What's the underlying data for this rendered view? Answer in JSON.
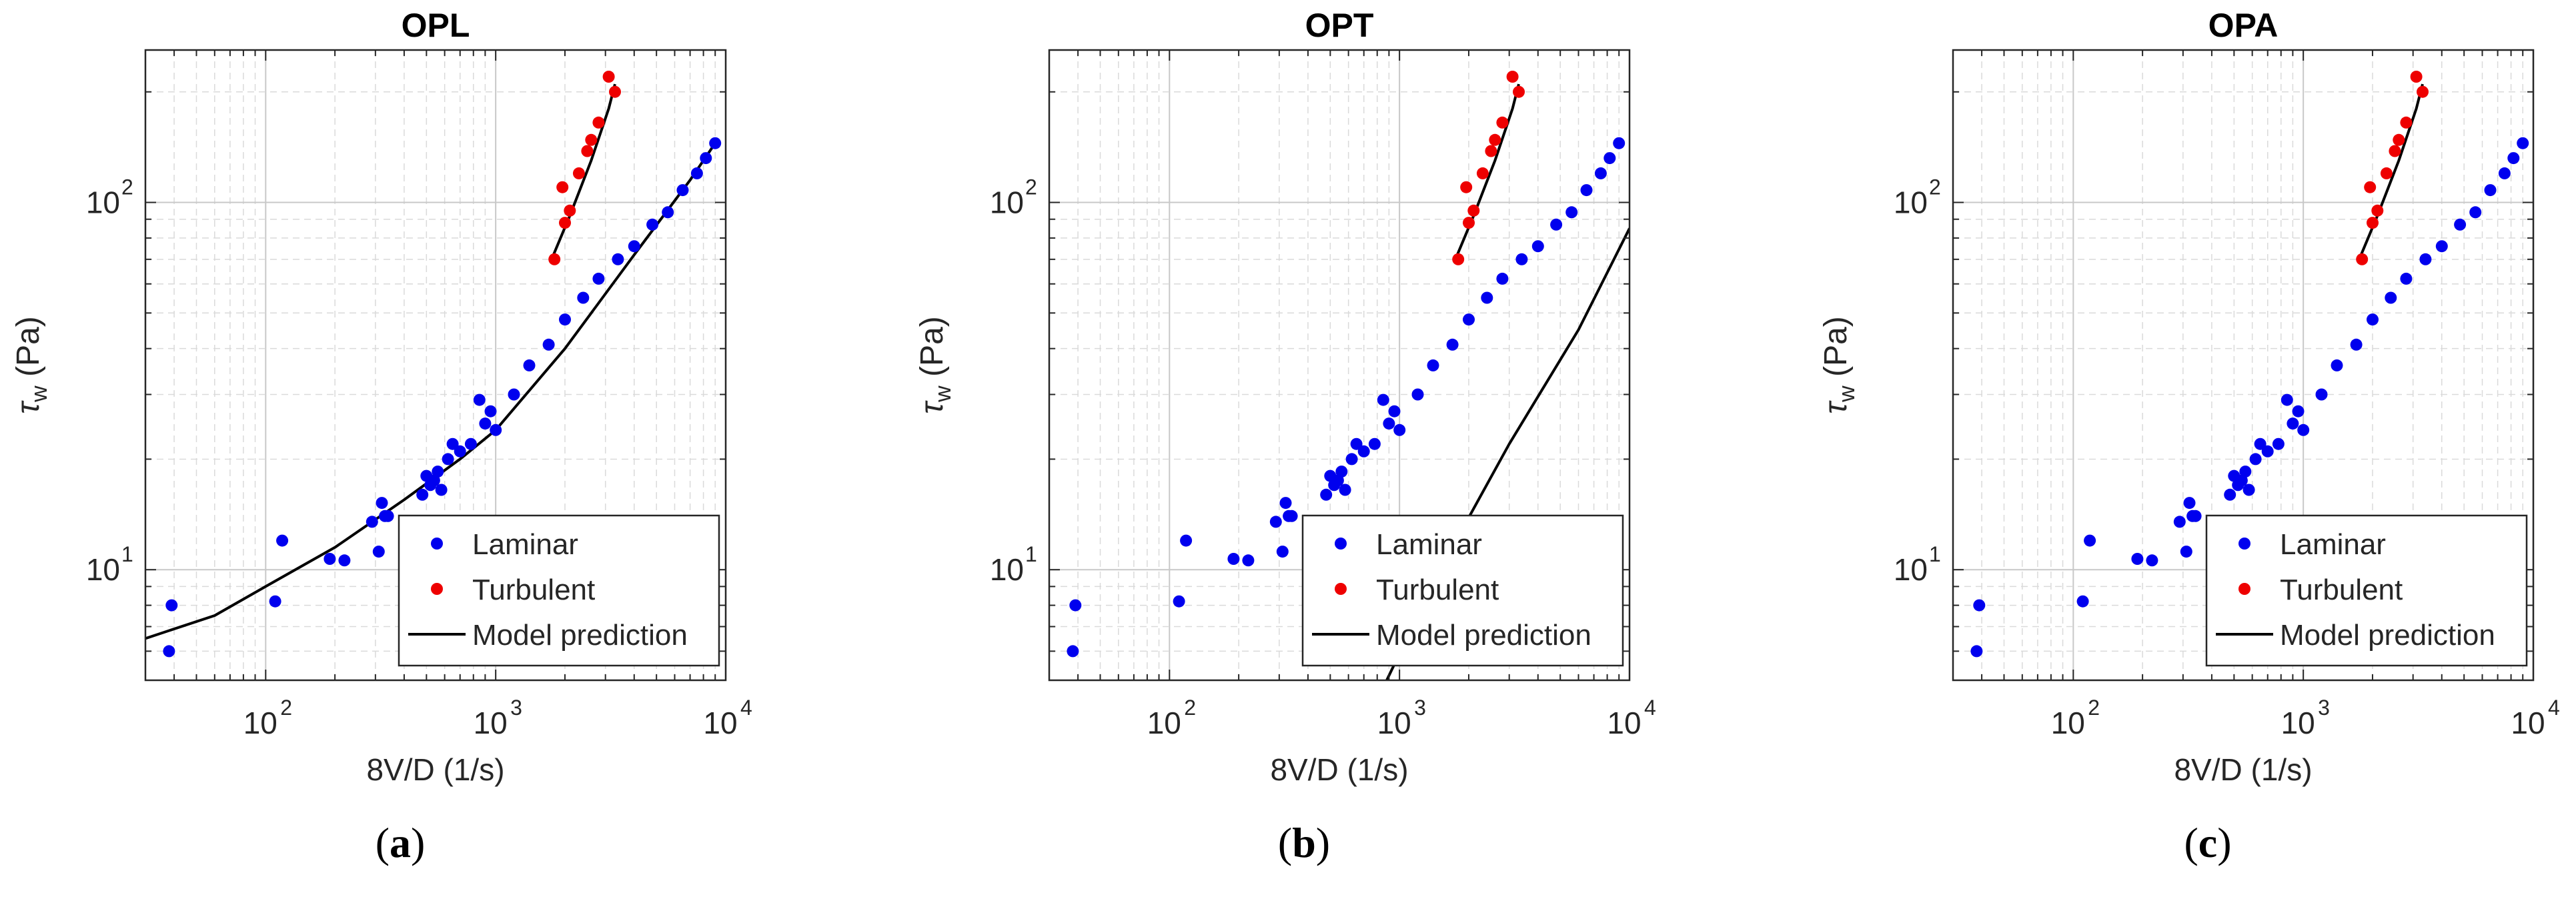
{
  "chart_data": [
    {
      "type": "scatter",
      "panel_label": "a",
      "title": "OPL",
      "xlabel": "8V/D (1/s)",
      "ylabel_symbol": "τ",
      "ylabel_subscript": "w",
      "ylabel_unit": "(Pa)",
      "xscale": "log",
      "yscale": "log",
      "xlim": [
        30,
        10000
      ],
      "ylim": [
        5,
        260
      ],
      "xticks": [
        {
          "value": 100,
          "label": "10",
          "exp": "2"
        },
        {
          "value": 1000,
          "label": "10",
          "exp": "3"
        },
        {
          "value": 10000,
          "label": "10",
          "exp": "4"
        }
      ],
      "yticks": [
        {
          "value": 10,
          "label": "10",
          "exp": "1"
        },
        {
          "value": 100,
          "label": "10",
          "exp": "2"
        }
      ],
      "grid": true,
      "legend_position": "bottom-right",
      "series": [
        {
          "name": "Laminar",
          "kind": "markers",
          "color": "#0000ee",
          "points": [
            [
              38,
              6
            ],
            [
              39,
              8
            ],
            [
              110,
              8.2
            ],
            [
              118,
              12
            ],
            [
              190,
              10.7
            ],
            [
              220,
              10.6
            ],
            [
              290,
              13.5
            ],
            [
              310,
              11.2
            ],
            [
              320,
              15.2
            ],
            [
              330,
              14
            ],
            [
              340,
              14
            ],
            [
              480,
              16
            ],
            [
              500,
              18
            ],
            [
              520,
              17
            ],
            [
              540,
              17.5
            ],
            [
              560,
              18.5
            ],
            [
              580,
              16.5
            ],
            [
              620,
              20
            ],
            [
              650,
              22
            ],
            [
              700,
              21
            ],
            [
              780,
              22
            ],
            [
              850,
              29
            ],
            [
              900,
              25
            ],
            [
              950,
              27
            ],
            [
              1000,
              24
            ],
            [
              1200,
              30
            ],
            [
              1400,
              36
            ],
            [
              1700,
              41
            ],
            [
              2000,
              48
            ],
            [
              2400,
              55
            ],
            [
              2800,
              62
            ],
            [
              3400,
              70
            ],
            [
              4000,
              76
            ],
            [
              4800,
              87
            ],
            [
              5600,
              94
            ],
            [
              6500,
              108
            ],
            [
              7500,
              120
            ],
            [
              8200,
              132
            ],
            [
              9000,
              145
            ]
          ]
        },
        {
          "name": "Turbulent",
          "kind": "markers",
          "color": "#ee0000",
          "points": [
            [
              1800,
              70
            ],
            [
              1950,
              110
            ],
            [
              2000,
              88
            ],
            [
              2100,
              95
            ],
            [
              2300,
              120
            ],
            [
              2500,
              138
            ],
            [
              2600,
              148
            ],
            [
              2800,
              165
            ],
            [
              3100,
              220
            ],
            [
              3300,
              200
            ]
          ]
        },
        {
          "name": "Model prediction",
          "kind": "line",
          "color": "#000000",
          "segments": [
            [
              [
                30,
                6.5
              ],
              [
                60,
                7.5
              ],
              [
                100,
                9
              ],
              [
                200,
                11.5
              ],
              [
                400,
                15.5
              ],
              [
                700,
                20
              ],
              [
                1000,
                24
              ],
              [
                2000,
                40
              ],
              [
                4000,
                72
              ],
              [
                7000,
                115
              ],
              [
                9000,
                145
              ]
            ],
            [
              [
                1750,
                70
              ],
              [
                2100,
                92
              ],
              [
                2600,
                130
              ],
              [
                3100,
                180
              ],
              [
                3300,
                210
              ]
            ]
          ]
        }
      ]
    },
    {
      "type": "scatter",
      "panel_label": "b",
      "title": "OPT",
      "xlabel": "8V/D (1/s)",
      "ylabel_symbol": "τ",
      "ylabel_subscript": "w",
      "ylabel_unit": "(Pa)",
      "xscale": "log",
      "yscale": "log",
      "xlim": [
        30,
        10000
      ],
      "ylim": [
        5,
        260
      ],
      "xticks": [
        {
          "value": 100,
          "label": "10",
          "exp": "2"
        },
        {
          "value": 1000,
          "label": "10",
          "exp": "3"
        },
        {
          "value": 10000,
          "label": "10",
          "exp": "4"
        }
      ],
      "yticks": [
        {
          "value": 10,
          "label": "10",
          "exp": "1"
        },
        {
          "value": 100,
          "label": "10",
          "exp": "2"
        }
      ],
      "grid": true,
      "legend_position": "bottom-right",
      "series": [
        {
          "name": "Laminar",
          "kind": "markers",
          "color": "#0000ee",
          "points": [
            [
              38,
              6
            ],
            [
              39,
              8
            ],
            [
              110,
              8.2
            ],
            [
              118,
              12
            ],
            [
              190,
              10.7
            ],
            [
              220,
              10.6
            ],
            [
              290,
              13.5
            ],
            [
              310,
              11.2
            ],
            [
              320,
              15.2
            ],
            [
              330,
              14
            ],
            [
              340,
              14
            ],
            [
              480,
              16
            ],
            [
              500,
              18
            ],
            [
              520,
              17
            ],
            [
              540,
              17.5
            ],
            [
              560,
              18.5
            ],
            [
              580,
              16.5
            ],
            [
              620,
              20
            ],
            [
              650,
              22
            ],
            [
              700,
              21
            ],
            [
              780,
              22
            ],
            [
              850,
              29
            ],
            [
              900,
              25
            ],
            [
              950,
              27
            ],
            [
              1000,
              24
            ],
            [
              1200,
              30
            ],
            [
              1400,
              36
            ],
            [
              1700,
              41
            ],
            [
              2000,
              48
            ],
            [
              2400,
              55
            ],
            [
              2800,
              62
            ],
            [
              3400,
              70
            ],
            [
              4000,
              76
            ],
            [
              4800,
              87
            ],
            [
              5600,
              94
            ],
            [
              6500,
              108
            ],
            [
              7500,
              120
            ],
            [
              8200,
              132
            ],
            [
              9000,
              145
            ]
          ]
        },
        {
          "name": "Turbulent",
          "kind": "markers",
          "color": "#ee0000",
          "points": [
            [
              1800,
              70
            ],
            [
              1950,
              110
            ],
            [
              2000,
              88
            ],
            [
              2100,
              95
            ],
            [
              2300,
              120
            ],
            [
              2500,
              138
            ],
            [
              2600,
              148
            ],
            [
              2800,
              165
            ],
            [
              3100,
              220
            ],
            [
              3300,
              200
            ]
          ]
        },
        {
          "name": "Model prediction",
          "kind": "line",
          "color": "#000000",
          "segments": [
            [
              [
                880,
                5
              ],
              [
                1500,
                10
              ],
              [
                3000,
                22
              ],
              [
                6000,
                45
              ],
              [
                10000,
                85
              ]
            ],
            [
              [
                1750,
                70
              ],
              [
                2100,
                92
              ],
              [
                2600,
                130
              ],
              [
                3100,
                180
              ],
              [
                3300,
                210
              ]
            ]
          ]
        }
      ]
    },
    {
      "type": "scatter",
      "panel_label": "c",
      "title": "OPA",
      "xlabel": "8V/D (1/s)",
      "ylabel_symbol": "τ",
      "ylabel_subscript": "w",
      "ylabel_unit": "(Pa)",
      "xscale": "log",
      "yscale": "log",
      "xlim": [
        30,
        10000
      ],
      "ylim": [
        5,
        260
      ],
      "xticks": [
        {
          "value": 100,
          "label": "10",
          "exp": "2"
        },
        {
          "value": 1000,
          "label": "10",
          "exp": "3"
        },
        {
          "value": 10000,
          "label": "10",
          "exp": "4"
        }
      ],
      "yticks": [
        {
          "value": 10,
          "label": "10",
          "exp": "1"
        },
        {
          "value": 100,
          "label": "10",
          "exp": "2"
        }
      ],
      "grid": true,
      "legend_position": "bottom-right",
      "series": [
        {
          "name": "Laminar",
          "kind": "markers",
          "color": "#0000ee",
          "points": [
            [
              38,
              6
            ],
            [
              39,
              8
            ],
            [
              110,
              8.2
            ],
            [
              118,
              12
            ],
            [
              190,
              10.7
            ],
            [
              220,
              10.6
            ],
            [
              290,
              13.5
            ],
            [
              310,
              11.2
            ],
            [
              320,
              15.2
            ],
            [
              330,
              14
            ],
            [
              340,
              14
            ],
            [
              480,
              16
            ],
            [
              500,
              18
            ],
            [
              520,
              17
            ],
            [
              540,
              17.5
            ],
            [
              560,
              18.5
            ],
            [
              580,
              16.5
            ],
            [
              620,
              20
            ],
            [
              650,
              22
            ],
            [
              700,
              21
            ],
            [
              780,
              22
            ],
            [
              850,
              29
            ],
            [
              900,
              25
            ],
            [
              950,
              27
            ],
            [
              1000,
              24
            ],
            [
              1200,
              30
            ],
            [
              1400,
              36
            ],
            [
              1700,
              41
            ],
            [
              2000,
              48
            ],
            [
              2400,
              55
            ],
            [
              2800,
              62
            ],
            [
              3400,
              70
            ],
            [
              4000,
              76
            ],
            [
              4800,
              87
            ],
            [
              5600,
              94
            ],
            [
              6500,
              108
            ],
            [
              7500,
              120
            ],
            [
              8200,
              132
            ],
            [
              9000,
              145
            ]
          ]
        },
        {
          "name": "Turbulent",
          "kind": "markers",
          "color": "#ee0000",
          "points": [
            [
              1800,
              70
            ],
            [
              1950,
              110
            ],
            [
              2000,
              88
            ],
            [
              2100,
              95
            ],
            [
              2300,
              120
            ],
            [
              2500,
              138
            ],
            [
              2600,
              148
            ],
            [
              2800,
              165
            ],
            [
              3100,
              220
            ],
            [
              3300,
              200
            ]
          ]
        },
        {
          "name": "Model prediction",
          "kind": "line",
          "color": "#000000",
          "segments": [
            [
              [
                1750,
                70
              ],
              [
                2100,
                92
              ],
              [
                2600,
                130
              ],
              [
                3100,
                180
              ],
              [
                3300,
                210
              ]
            ]
          ]
        }
      ]
    }
  ]
}
